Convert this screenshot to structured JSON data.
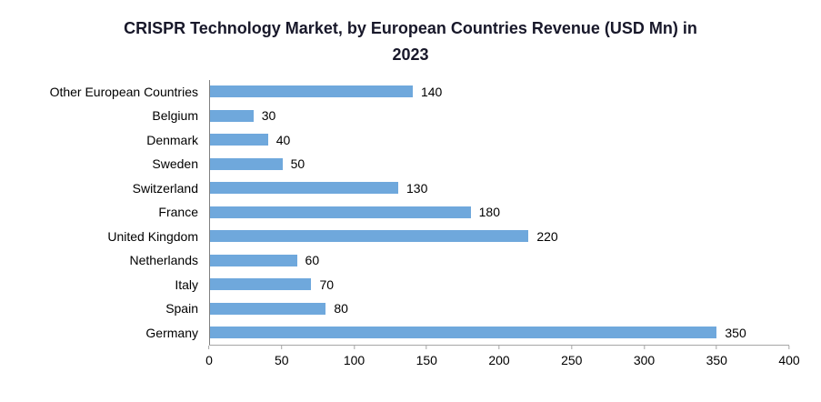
{
  "chart_data": {
    "type": "bar",
    "orientation": "horizontal",
    "title": "CRISPR Technology Market, by European Countries Revenue (USD Mn) in 2023",
    "categories": [
      "Other European Countries",
      "Belgium",
      "Denmark",
      "Sweden",
      "Switzerland",
      "France",
      "United Kingdom",
      "Netherlands",
      "Italy",
      "Spain",
      "Germany"
    ],
    "values": [
      140,
      30,
      40,
      50,
      130,
      180,
      220,
      60,
      70,
      80,
      350
    ],
    "xlabel": "",
    "ylabel": "",
    "xlim": [
      0,
      400
    ],
    "xticks": [
      0,
      50,
      100,
      150,
      200,
      250,
      300,
      350,
      400
    ],
    "bar_color": "#6FA8DC",
    "data_labels": true,
    "grid": false,
    "legend_position": "none",
    "background": "#FFFFFF"
  }
}
